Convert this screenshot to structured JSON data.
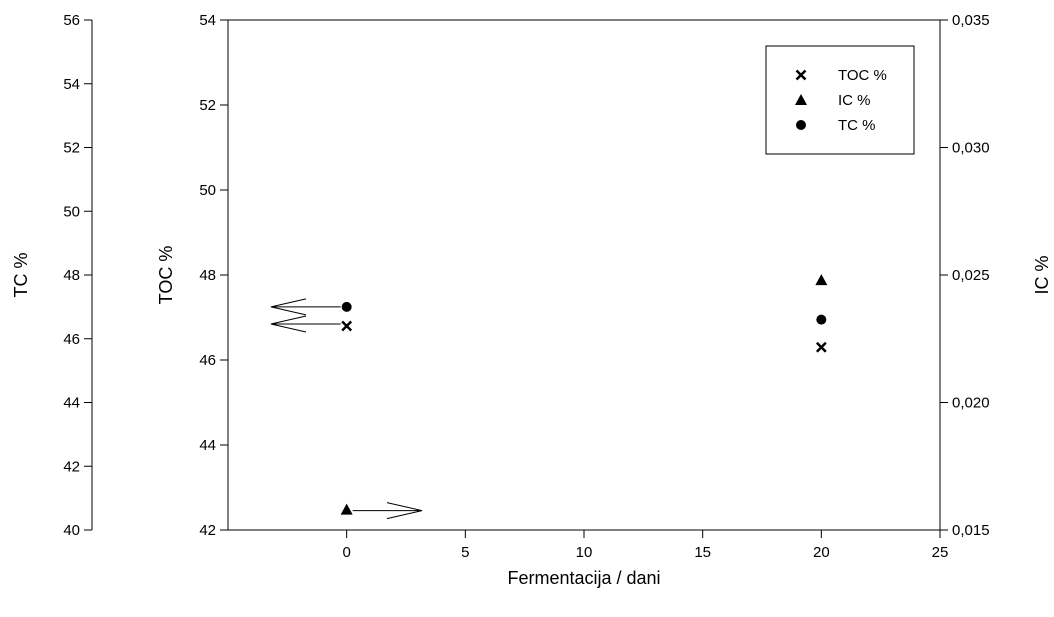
{
  "chart_data": {
    "type": "scatter",
    "title": "",
    "xlabel": "Fermentacija / dani",
    "xlim": [
      -5,
      25
    ],
    "x_ticks": [
      "0",
      "5",
      "10",
      "15",
      "20",
      "25"
    ],
    "axes": {
      "tc": {
        "label": "TC %",
        "lim": [
          40,
          56
        ],
        "ticks": [
          "40",
          "42",
          "44",
          "46",
          "48",
          "50",
          "52",
          "54",
          "56"
        ]
      },
      "toc": {
        "label": "TOC %",
        "lim": [
          42,
          54
        ],
        "ticks": [
          "42",
          "44",
          "46",
          "48",
          "50",
          "52",
          "54"
        ]
      },
      "ic": {
        "label": "IC %",
        "lim": [
          0.015,
          0.035
        ],
        "ticks": [
          "0,015",
          "0,020",
          "0,025",
          "0,030",
          "0,035"
        ]
      }
    },
    "series": [
      {
        "name": "TOC %",
        "axis": "toc",
        "marker": "x",
        "x": [
          0,
          20
        ],
        "y": [
          46.8,
          46.3
        ]
      },
      {
        "name": "IC %",
        "axis": "ic",
        "marker": "triangle",
        "x": [
          0,
          20
        ],
        "y": [
          0.0158,
          0.0248
        ]
      },
      {
        "name": "TC %",
        "axis": "tc",
        "marker": "circle",
        "x": [
          0,
          20
        ],
        "y": [
          47.0,
          46.6
        ]
      }
    ],
    "legend_position": "top-right",
    "grid": false,
    "annotations": [
      {
        "type": "arrow",
        "direction": "left",
        "points_to_axis": "tc",
        "series": "TC %"
      },
      {
        "type": "arrow",
        "direction": "left",
        "points_to_axis": "toc",
        "series": "TOC %"
      },
      {
        "type": "arrow",
        "direction": "right",
        "points_to_axis": "ic",
        "series": "IC %"
      }
    ]
  }
}
